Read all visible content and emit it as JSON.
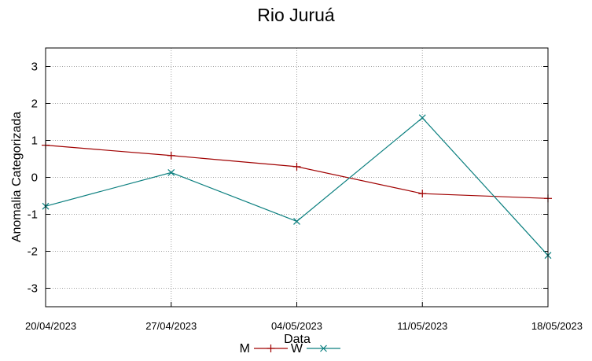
{
  "chart_data": {
    "type": "line",
    "title": "Rio Juruá",
    "xlabel": "Data",
    "ylabel": "Anomalia Categorizada",
    "categories": [
      "20/04/2023",
      "27/04/2023",
      "04/05/2023",
      "11/05/2023",
      "18/05/2023"
    ],
    "ylim": [
      -3.5,
      3.5
    ],
    "yticks": [
      "3",
      "2",
      "1",
      "0",
      "-1",
      "-2",
      "-3"
    ],
    "grid": true,
    "legend_position": "bottom-center",
    "series": [
      {
        "name": "M",
        "color": "#a00000",
        "marker": "plus",
        "values": [
          0.87,
          0.59,
          0.29,
          -0.44,
          -0.57
        ]
      },
      {
        "name": "W",
        "color": "#0b7f7f",
        "marker": "cross",
        "values": [
          -0.78,
          0.13,
          -1.19,
          1.61,
          -2.11
        ]
      }
    ]
  }
}
